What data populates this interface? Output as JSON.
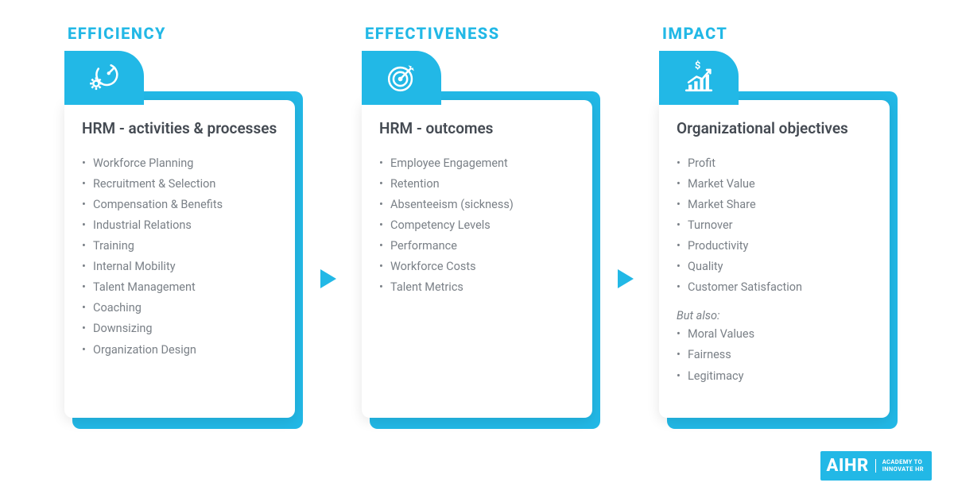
{
  "colors": {
    "accent": "#22b8e6",
    "title_text": "#444a52",
    "body_text": "#7a8087",
    "card_bg": "#ffffff",
    "page_bg": "#ffffff"
  },
  "cards": [
    {
      "title": "EFFICIENCY",
      "icon": "gear-speed",
      "subtitle": "HRM - activities & processes",
      "items": [
        "Workforce Planning",
        "Recruitment & Selection",
        "Compensation & Benefits",
        "Industrial Relations",
        "Training",
        "Internal Mobility",
        "Talent Management",
        "Coaching",
        "Downsizing",
        "Organization Design"
      ],
      "extra_label": null,
      "extra_items": []
    },
    {
      "title": "EFFECTIVENESS",
      "icon": "target",
      "subtitle": "HRM - outcomes",
      "items": [
        "Employee Engagement",
        "Retention",
        "Absenteeism (sickness)",
        "Competency Levels",
        "Performance",
        "Workforce Costs",
        "Talent Metrics"
      ],
      "extra_label": null,
      "extra_items": []
    },
    {
      "title": "IMPACT",
      "icon": "growth-dollar",
      "subtitle": "Organizational objectives",
      "items": [
        "Profit",
        "Market Value",
        "Market Share",
        "Turnover",
        "Productivity",
        "Quality",
        "Customer Satisfaction"
      ],
      "extra_label": "But also:",
      "extra_items": [
        "Moral Values",
        "Fairness",
        "Legitimacy"
      ]
    }
  ],
  "logo": {
    "main": "AIHR",
    "sub_line1": "ACADEMY TO",
    "sub_line2": "INNOVATE HR"
  }
}
